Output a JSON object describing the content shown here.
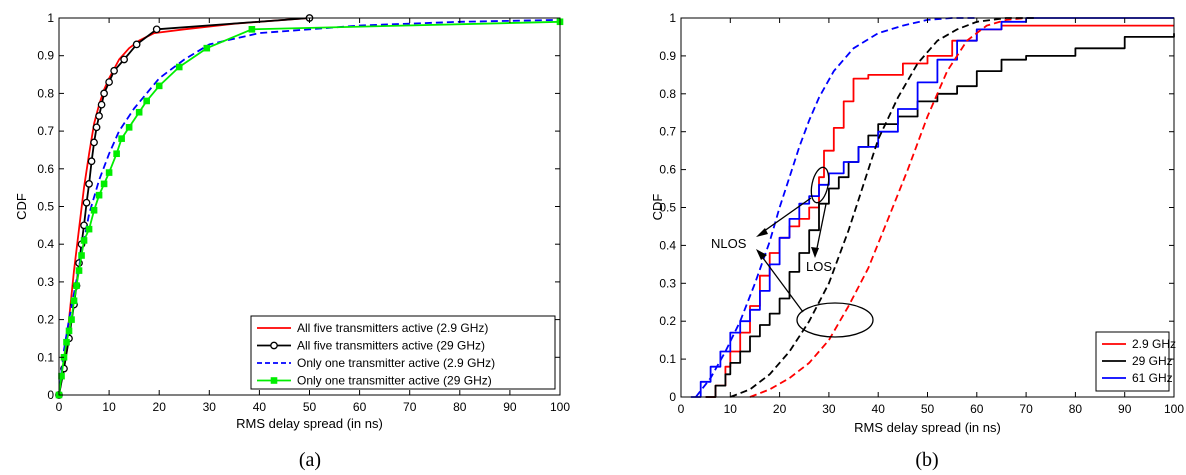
{
  "chart_data": [
    {
      "type": "line",
      "caption": "(a)",
      "xlabel": "RMS delay spread (in ns)",
      "ylabel": "CDF",
      "xlim": [
        0,
        100
      ],
      "ylim": [
        0,
        1
      ],
      "xticks": [
        0,
        10,
        20,
        30,
        40,
        50,
        60,
        70,
        80,
        90,
        100
      ],
      "yticks": [
        0,
        0.1,
        0.2,
        0.3,
        0.4,
        0.5,
        0.6,
        0.7,
        0.8,
        0.9,
        1
      ],
      "grid": false,
      "legend_position": "bottom-right",
      "series": [
        {
          "name": "All five transmitters active (2.9 GHz)",
          "color": "#ff0000",
          "dash": "solid",
          "marker": "none",
          "x": [
            0,
            1,
            2,
            3,
            4,
            5,
            6,
            7,
            8,
            9,
            10,
            12,
            14,
            16,
            19,
            25,
            35,
            50
          ],
          "y": [
            0,
            0.08,
            0.2,
            0.33,
            0.44,
            0.55,
            0.64,
            0.72,
            0.77,
            0.81,
            0.84,
            0.89,
            0.92,
            0.94,
            0.96,
            0.97,
            0.985,
            1.0
          ]
        },
        {
          "name": "All five transmitters active (29 GHz)",
          "color": "#000000",
          "dash": "solid",
          "marker": "circle",
          "x": [
            0,
            1,
            2,
            3,
            3.5,
            4,
            4.5,
            5,
            5.5,
            6,
            6.5,
            7,
            7.5,
            8,
            8.5,
            9,
            10,
            11,
            13,
            15.5,
            19.5,
            50
          ],
          "y": [
            0,
            0.07,
            0.15,
            0.24,
            0.29,
            0.35,
            0.4,
            0.45,
            0.51,
            0.56,
            0.62,
            0.67,
            0.71,
            0.74,
            0.77,
            0.8,
            0.83,
            0.86,
            0.89,
            0.93,
            0.97,
            1.0
          ]
        },
        {
          "name": "Only one transmitter active (2.9 GHz)",
          "color": "#0000ff",
          "dash": "dashed",
          "marker": "none",
          "x": [
            0,
            1,
            2,
            3,
            4,
            5,
            6,
            8,
            10,
            12,
            15,
            20,
            25,
            30,
            40,
            60,
            80,
            100
          ],
          "y": [
            0,
            0.12,
            0.2,
            0.27,
            0.34,
            0.41,
            0.48,
            0.57,
            0.64,
            0.7,
            0.76,
            0.84,
            0.89,
            0.93,
            0.96,
            0.98,
            0.99,
            0.995
          ]
        },
        {
          "name": "Only one transmitter active (29 GHz)",
          "color": "#00ee00",
          "dash": "solid",
          "marker": "square",
          "x": [
            0,
            0.5,
            1,
            1.5,
            2,
            2.5,
            3,
            3.5,
            4,
            4.5,
            5,
            6,
            7,
            8,
            9,
            10,
            11.5,
            12.5,
            14,
            16,
            17.5,
            20,
            24,
            29.5,
            38.5,
            100
          ],
          "y": [
            0,
            0.05,
            0.1,
            0.14,
            0.17,
            0.2,
            0.25,
            0.29,
            0.33,
            0.37,
            0.41,
            0.44,
            0.49,
            0.53,
            0.56,
            0.59,
            0.64,
            0.68,
            0.71,
            0.75,
            0.78,
            0.82,
            0.87,
            0.92,
            0.97,
            0.99
          ]
        }
      ]
    },
    {
      "type": "line",
      "caption": "(b)",
      "xlabel": "RMS delay spread (in ns)",
      "ylabel": "CDF",
      "xlim": [
        0,
        100
      ],
      "ylim": [
        0,
        1
      ],
      "xticks": [
        0,
        10,
        20,
        30,
        40,
        50,
        60,
        70,
        80,
        90,
        100
      ],
      "yticks": [
        0,
        0.1,
        0.2,
        0.3,
        0.4,
        0.5,
        0.6,
        0.7,
        0.8,
        0.9,
        1
      ],
      "grid": false,
      "legend_position": "bottom-right",
      "legend": [
        {
          "name": "2.9 GHz",
          "color": "#ff0000"
        },
        {
          "name": "29 GHz",
          "color": "#000000"
        },
        {
          "name": "61 GHz",
          "color": "#0000ff"
        }
      ],
      "annotations": [
        "NLOS",
        "LOS"
      ],
      "series": [
        {
          "group": "2.9 GHz",
          "condition": "NLOS",
          "color": "#ff0000",
          "dash": "solid",
          "step": true,
          "x": [
            5,
            7,
            9,
            10,
            12,
            14,
            16,
            18,
            20,
            22,
            24,
            26,
            28,
            29,
            31,
            33,
            35,
            38,
            40,
            45,
            50,
            55,
            60,
            65,
            70,
            80,
            100
          ],
          "y": [
            0,
            0.03,
            0.08,
            0.12,
            0.17,
            0.24,
            0.32,
            0.38,
            0.42,
            0.45,
            0.47,
            0.5,
            0.58,
            0.65,
            0.71,
            0.78,
            0.84,
            0.85,
            0.85,
            0.88,
            0.9,
            0.94,
            0.97,
            0.98,
            0.98,
            0.98,
            0.98
          ]
        },
        {
          "group": "29 GHz",
          "condition": "NLOS",
          "color": "#000000",
          "dash": "solid",
          "step": true,
          "x": [
            5,
            7,
            9,
            10,
            12,
            14,
            16,
            18,
            20,
            22,
            24,
            26,
            28,
            30,
            32,
            34,
            36,
            38,
            40,
            44,
            48,
            52,
            56,
            60,
            65,
            70,
            80,
            90,
            100
          ],
          "y": [
            0,
            0.03,
            0.06,
            0.09,
            0.12,
            0.16,
            0.19,
            0.22,
            0.26,
            0.33,
            0.38,
            0.44,
            0.51,
            0.55,
            0.58,
            0.62,
            0.66,
            0.69,
            0.72,
            0.74,
            0.78,
            0.8,
            0.82,
            0.86,
            0.89,
            0.9,
            0.92,
            0.95,
            0.96
          ]
        },
        {
          "group": "61 GHz",
          "condition": "NLOS",
          "color": "#0000ff",
          "dash": "solid",
          "step": true,
          "x": [
            2,
            4,
            6,
            8,
            10,
            12,
            14,
            16,
            18,
            20,
            22,
            24,
            26,
            28,
            30,
            33,
            36,
            40,
            44,
            48,
            52,
            56,
            60,
            65,
            70,
            80,
            100
          ],
          "y": [
            0,
            0.04,
            0.08,
            0.12,
            0.17,
            0.2,
            0.23,
            0.28,
            0.35,
            0.42,
            0.47,
            0.51,
            0.53,
            0.56,
            0.59,
            0.62,
            0.66,
            0.7,
            0.76,
            0.83,
            0.89,
            0.94,
            0.97,
            0.99,
            1.0,
            1.0,
            1.0
          ]
        },
        {
          "group": "2.9 GHz",
          "condition": "LOS",
          "color": "#ff0000",
          "dash": "dashed",
          "step": false,
          "x": [
            14,
            18,
            22,
            26,
            30,
            34,
            38,
            42,
            46,
            50,
            54,
            58,
            62,
            66,
            70
          ],
          "y": [
            0,
            0.02,
            0.05,
            0.09,
            0.15,
            0.24,
            0.34,
            0.47,
            0.6,
            0.74,
            0.86,
            0.94,
            0.98,
            0.995,
            1.0
          ]
        },
        {
          "group": "29 GHz",
          "condition": "LOS",
          "color": "#000000",
          "dash": "dashed",
          "step": false,
          "x": [
            10,
            14,
            18,
            22,
            26,
            30,
            34,
            36,
            38,
            40,
            44,
            48,
            52,
            56,
            60,
            66,
            72
          ],
          "y": [
            0,
            0.02,
            0.06,
            0.12,
            0.2,
            0.3,
            0.44,
            0.52,
            0.6,
            0.68,
            0.79,
            0.88,
            0.94,
            0.97,
            0.99,
            1.0,
            1.0
          ]
        },
        {
          "group": "61 GHz",
          "condition": "LOS",
          "color": "#0000ff",
          "dash": "dashed",
          "step": false,
          "x": [
            3,
            6,
            9,
            12,
            15,
            18,
            20,
            22,
            24,
            26,
            28,
            31,
            35,
            40,
            45,
            50,
            55,
            60
          ],
          "y": [
            0,
            0.05,
            0.12,
            0.2,
            0.3,
            0.41,
            0.5,
            0.58,
            0.66,
            0.73,
            0.79,
            0.86,
            0.92,
            0.96,
            0.98,
            0.995,
            1.0,
            1.0
          ]
        }
      ]
    }
  ]
}
